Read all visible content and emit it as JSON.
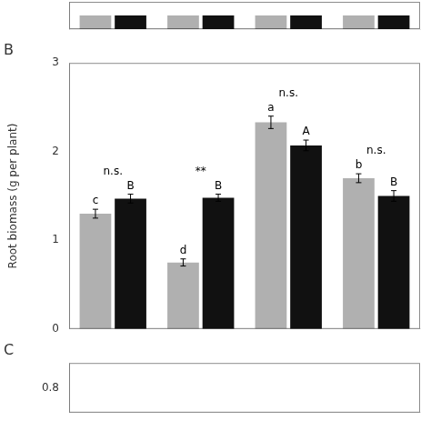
{
  "chart_data": [
    {
      "type": "bar",
      "categories": [
        null,
        null,
        null,
        null
      ],
      "series": [
        {
          "color": "#b0b0b0",
          "values": [
            8.0,
            8.0,
            8.0,
            8.0
          ]
        },
        {
          "color": "#111111",
          "values": [
            8.0,
            8.0,
            8.0,
            8.0
          ]
        }
      ],
      "ylim": [
        7.5,
        8.5
      ],
      "tick_labels": false,
      "grid": false
    },
    {
      "type": "bar",
      "title": "B",
      "ylabel": "Root biomass (g per plant)",
      "categories": [
        null,
        null,
        null,
        null
      ],
      "series": [
        {
          "color": "#b0b0b0",
          "values": [
            1.3,
            0.75,
            2.33,
            1.7
          ],
          "errors": [
            0.05,
            0.04,
            0.07,
            0.05
          ],
          "annotations": [
            "c",
            "d",
            "a",
            "b"
          ]
        },
        {
          "color": "#111111",
          "values": [
            1.47,
            1.48,
            2.07,
            1.5
          ],
          "errors": [
            0.05,
            0.04,
            0.06,
            0.06
          ],
          "annotations": [
            "B",
            "B",
            "A",
            "B"
          ]
        }
      ],
      "annotations": [
        "n.s.",
        "**",
        "n.s.",
        "n.s."
      ],
      "ylim": [
        0,
        3
      ],
      "yticks": [
        0,
        1,
        2,
        3
      ],
      "tick_labels": "y",
      "grid": false
    },
    {
      "type": "bar",
      "title": "C",
      "ylim": [
        0.75,
        0.85
      ],
      "yticks": [
        0.8
      ],
      "tick_labels": "y",
      "grid": false
    }
  ]
}
